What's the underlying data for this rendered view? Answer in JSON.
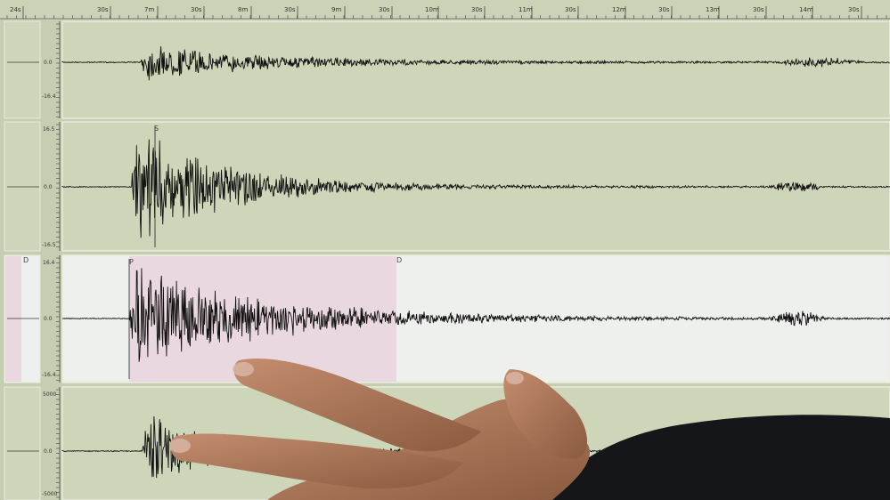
{
  "ruler": {
    "labels": [
      "24s",
      "30s",
      "7m",
      "30s",
      "8m",
      "30s",
      "9m",
      "30s",
      "10m",
      "30s",
      "11m",
      "30s",
      "12m",
      "30s",
      "13m",
      "30s",
      "14m",
      "30s"
    ]
  },
  "channels": [
    {
      "top_label": "",
      "zero_label": "0.0",
      "bottom_label": "-16.4",
      "highlighted": false
    },
    {
      "top_label": "16.5",
      "zero_label": "0.0",
      "bottom_label": "-16.5",
      "highlighted": false,
      "marker": "S"
    },
    {
      "top_label": "16.4",
      "zero_label": "0.0",
      "bottom_label": "-16.4",
      "highlighted": true,
      "marker": "P",
      "selection_end_marker": "D",
      "left_marker": "D"
    },
    {
      "top_label": "5000",
      "zero_label": "0.0",
      "bottom_label": "-5000",
      "highlighted": false
    }
  ],
  "colors": {
    "screen_background": "#cdd6b8",
    "highlight_background": "#eef0ee",
    "selection": "#ead8e0",
    "trace": "#111111",
    "skin": "#b07a5c",
    "sleeve": "#15161a"
  }
}
